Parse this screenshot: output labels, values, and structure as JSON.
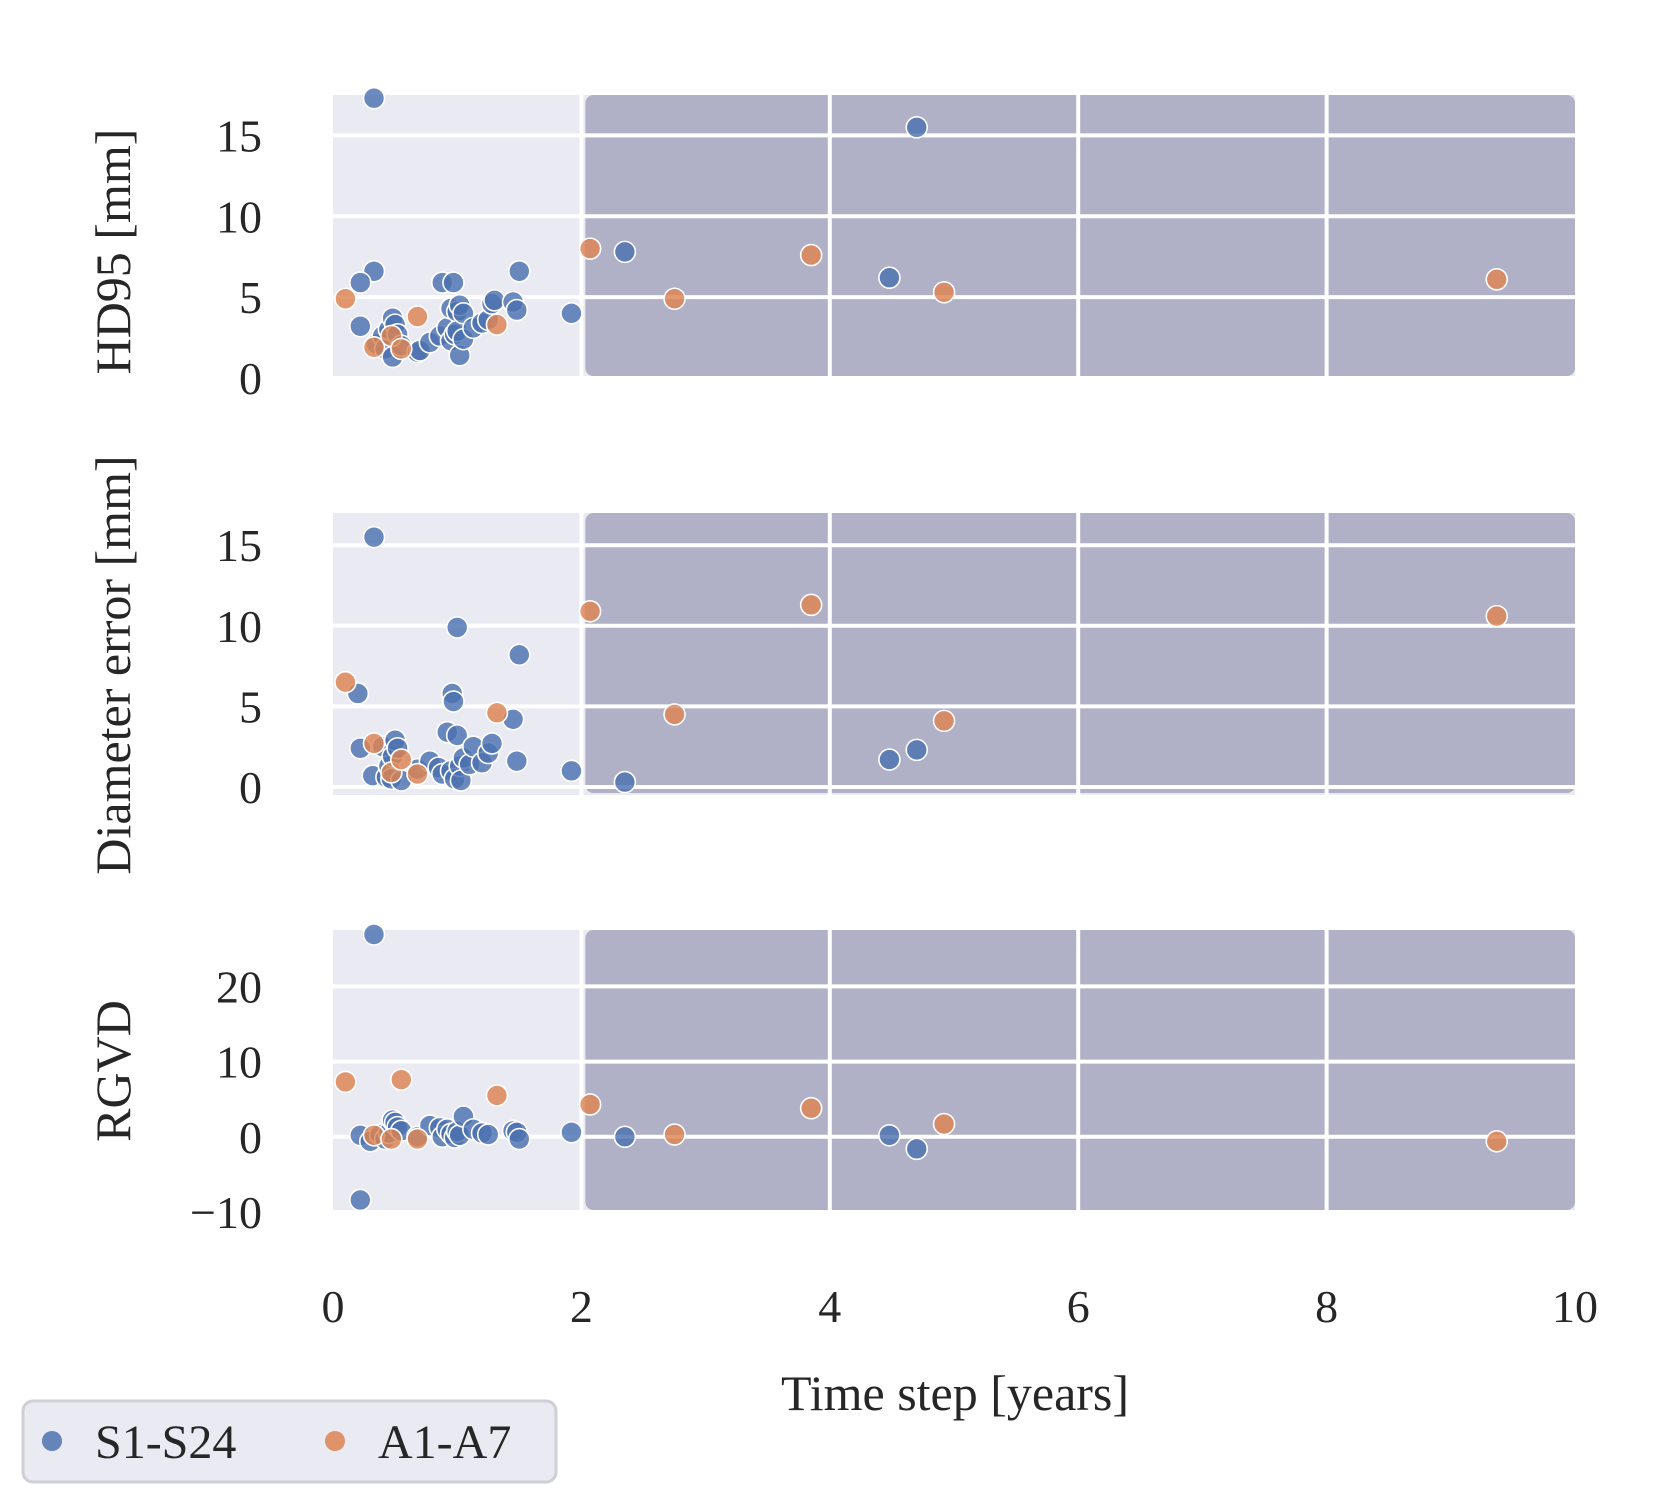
{
  "chart_data": {
    "type": "scatter",
    "shared_x": {
      "xlabel": "Time step [years]",
      "xlim": [
        0,
        10
      ],
      "ticks": [
        0,
        2,
        4,
        6,
        8,
        10
      ]
    },
    "shared_ylabel_main": "Diameter error [mm]",
    "shaded_region": {
      "from": 2,
      "to": 10,
      "color": "#b0b0c6"
    },
    "plot_background": "#eaeaf2",
    "legend": {
      "placement": "bottom-left",
      "entries": [
        {
          "label": "S1-S24",
          "color": "#4c72b0"
        },
        {
          "label": "A1-A7",
          "color": "#dd8452"
        }
      ]
    },
    "panels": [
      {
        "ylabel": "HD95 [mm]",
        "ylim": [
          0,
          17.5
        ],
        "yticks": [
          0,
          5,
          10,
          15
        ],
        "series": [
          {
            "name": "S1-S24",
            "color": "#4c72b0",
            "points": [
              [
                0.33,
                17.3
              ],
              [
                0.33,
                6.6
              ],
              [
                0.22,
                5.9
              ],
              [
                0.22,
                3.2
              ],
              [
                0.35,
                2.1
              ],
              [
                0.4,
                2.6
              ],
              [
                0.42,
                1.8
              ],
              [
                0.45,
                3.0
              ],
              [
                0.48,
                3.7
              ],
              [
                0.48,
                1.3
              ],
              [
                0.5,
                3.3
              ],
              [
                0.52,
                2.7
              ],
              [
                0.55,
                2.0
              ],
              [
                0.68,
                1.6
              ],
              [
                0.7,
                1.7
              ],
              [
                0.78,
                2.2
              ],
              [
                0.86,
                2.6
              ],
              [
                0.88,
                5.9
              ],
              [
                0.92,
                3.1
              ],
              [
                0.95,
                2.3
              ],
              [
                0.95,
                4.3
              ],
              [
                0.97,
                5.9
              ],
              [
                0.98,
                2.7
              ],
              [
                1.0,
                4.1
              ],
              [
                1.0,
                2.9
              ],
              [
                1.02,
                4.5
              ],
              [
                1.02,
                1.4
              ],
              [
                1.05,
                2.4
              ],
              [
                1.05,
                4.0
              ],
              [
                1.13,
                3.1
              ],
              [
                1.2,
                3.4
              ],
              [
                1.25,
                3.6
              ],
              [
                1.28,
                4.6
              ],
              [
                1.3,
                4.8
              ],
              [
                1.45,
                4.7
              ],
              [
                1.48,
                4.2
              ],
              [
                1.5,
                6.6
              ],
              [
                1.92,
                4.0
              ],
              [
                2.35,
                7.8
              ],
              [
                4.48,
                6.2
              ],
              [
                4.7,
                15.5
              ]
            ]
          },
          {
            "name": "A1-A7",
            "color": "#dd8452",
            "points": [
              [
                0.1,
                4.9
              ],
              [
                0.33,
                1.9
              ],
              [
                0.47,
                2.6
              ],
              [
                0.55,
                1.8
              ],
              [
                0.68,
                3.8
              ],
              [
                1.32,
                3.3
              ],
              [
                2.07,
                8.0
              ],
              [
                2.75,
                4.9
              ],
              [
                3.85,
                7.6
              ],
              [
                4.92,
                5.3
              ],
              [
                9.37,
                6.1
              ]
            ]
          }
        ]
      },
      {
        "ylabel": "",
        "ylim": [
          -0.5,
          17
        ],
        "yticks": [
          0,
          5,
          10,
          15
        ],
        "series": [
          {
            "name": "S1-S24",
            "color": "#4c72b0",
            "points": [
              [
                0.33,
                15.5
              ],
              [
                0.2,
                5.8
              ],
              [
                0.22,
                2.4
              ],
              [
                0.32,
                0.7
              ],
              [
                0.4,
                2.5
              ],
              [
                0.43,
                0.6
              ],
              [
                0.45,
                1.3
              ],
              [
                0.47,
                0.5
              ],
              [
                0.48,
                1.9
              ],
              [
                0.5,
                2.9
              ],
              [
                0.52,
                2.4
              ],
              [
                0.55,
                0.4
              ],
              [
                0.68,
                1.1
              ],
              [
                0.78,
                1.6
              ],
              [
                0.85,
                1.2
              ],
              [
                0.88,
                0.8
              ],
              [
                0.92,
                3.4
              ],
              [
                0.95,
                1.0
              ],
              [
                0.96,
                5.8
              ],
              [
                0.97,
                5.3
              ],
              [
                0.98,
                0.5
              ],
              [
                1.0,
                3.2
              ],
              [
                1.0,
                9.9
              ],
              [
                1.02,
                1.3
              ],
              [
                1.03,
                0.4
              ],
              [
                1.05,
                1.8
              ],
              [
                1.1,
                1.4
              ],
              [
                1.13,
                2.5
              ],
              [
                1.2,
                1.5
              ],
              [
                1.25,
                2.1
              ],
              [
                1.28,
                2.7
              ],
              [
                1.45,
                4.2
              ],
              [
                1.48,
                1.6
              ],
              [
                1.5,
                8.2
              ],
              [
                1.92,
                1.0
              ],
              [
                2.35,
                0.3
              ],
              [
                4.48,
                1.7
              ],
              [
                4.7,
                2.3
              ]
            ]
          },
          {
            "name": "A1-A7",
            "color": "#dd8452",
            "points": [
              [
                0.1,
                6.5
              ],
              [
                0.33,
                2.7
              ],
              [
                0.47,
                0.9
              ],
              [
                0.55,
                1.7
              ],
              [
                0.68,
                0.8
              ],
              [
                1.32,
                4.6
              ],
              [
                2.07,
                10.9
              ],
              [
                2.75,
                4.5
              ],
              [
                3.85,
                11.3
              ],
              [
                4.92,
                4.1
              ],
              [
                9.37,
                10.6
              ]
            ]
          }
        ]
      },
      {
        "ylabel": "RGVD",
        "ylim": [
          -10,
          27.5
        ],
        "yticks": [
          -10,
          0,
          10,
          20
        ],
        "ytick_labels": [
          "−10",
          "0",
          "10",
          "20"
        ],
        "series": [
          {
            "name": "S1-S24",
            "color": "#4c72b0",
            "points": [
              [
                0.33,
                26.9
              ],
              [
                0.22,
                -8.4
              ],
              [
                0.22,
                0.2
              ],
              [
                0.3,
                -0.6
              ],
              [
                0.38,
                0.3
              ],
              [
                0.42,
                -0.3
              ],
              [
                0.45,
                0.5
              ],
              [
                0.48,
                2.2
              ],
              [
                0.5,
                1.9
              ],
              [
                0.52,
                1.3
              ],
              [
                0.55,
                0.8
              ],
              [
                0.68,
                0.0
              ],
              [
                0.78,
                1.5
              ],
              [
                0.86,
                1.2
              ],
              [
                0.88,
                0.0
              ],
              [
                0.92,
                1.0
              ],
              [
                0.95,
                0.4
              ],
              [
                0.98,
                -0.1
              ],
              [
                1.0,
                0.7
              ],
              [
                1.02,
                0.2
              ],
              [
                1.05,
                2.7
              ],
              [
                1.13,
                1.0
              ],
              [
                1.2,
                0.5
              ],
              [
                1.25,
                0.3
              ],
              [
                1.45,
                0.8
              ],
              [
                1.48,
                0.6
              ],
              [
                1.5,
                -0.3
              ],
              [
                1.92,
                0.6
              ],
              [
                2.35,
                0.0
              ],
              [
                4.48,
                0.2
              ],
              [
                4.7,
                -1.6
              ]
            ]
          },
          {
            "name": "A1-A7",
            "color": "#dd8452",
            "points": [
              [
                0.1,
                7.3
              ],
              [
                0.33,
                0.2
              ],
              [
                0.47,
                -0.3
              ],
              [
                0.55,
                7.6
              ],
              [
                0.68,
                -0.3
              ],
              [
                1.32,
                5.5
              ],
              [
                2.07,
                4.3
              ],
              [
                2.75,
                0.3
              ],
              [
                3.85,
                3.8
              ],
              [
                4.92,
                1.7
              ],
              [
                9.37,
                -0.6
              ]
            ]
          }
        ]
      }
    ]
  }
}
